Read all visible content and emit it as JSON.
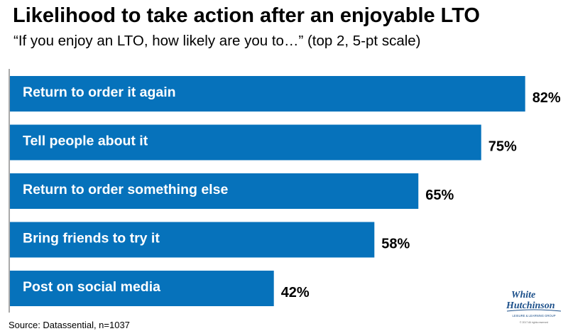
{
  "chart_data": {
    "type": "bar",
    "orientation": "horizontal",
    "title": "Likelihood to take action after an enjoyable LTO",
    "subtitle": "“If you enjoy an LTO, how likely are you to…” (top 2, 5-pt scale)",
    "categories": [
      "Return to order it again",
      "Tell people about it",
      "Return to order something else",
      "Bring friends to try it",
      "Post on social media"
    ],
    "values": [
      82,
      75,
      65,
      58,
      42
    ],
    "value_labels": [
      "82%",
      "75%",
      "65%",
      "58%",
      "42%"
    ],
    "xlim": [
      0,
      100
    ],
    "grid": false,
    "legend": "none",
    "bar_color": "#0672bb"
  },
  "footer": {
    "source": "Source: Datassential, n=1037"
  },
  "logo": {
    "line1": "White",
    "line2": "Hutchinson",
    "tagline": "LEISURE & LEARNING GROUP",
    "copyright": "© 2017 All rights reserved"
  }
}
